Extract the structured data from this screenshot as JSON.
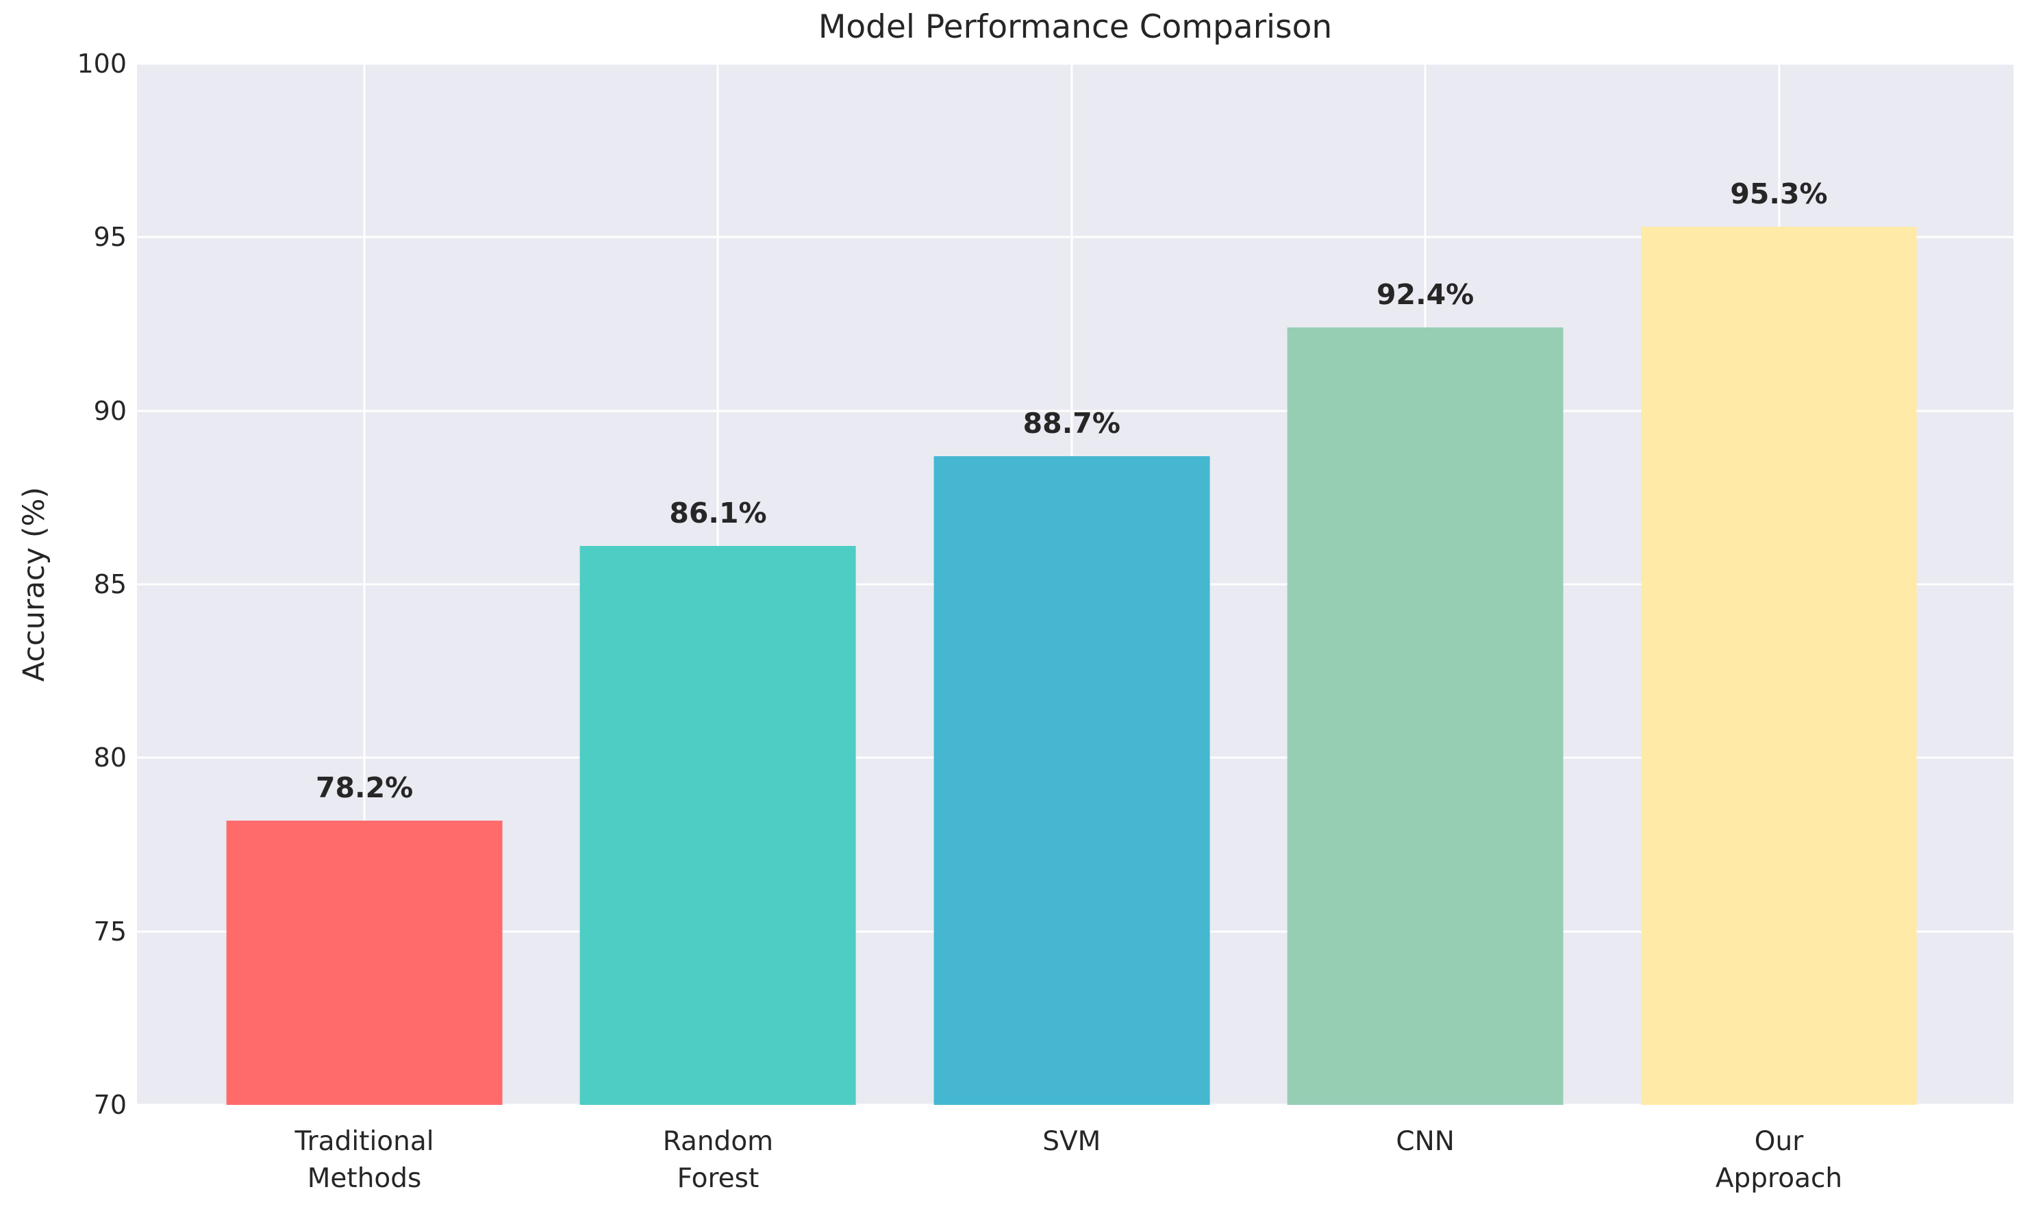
{
  "chart_data": {
    "type": "bar",
    "title": "Model Performance Comparison",
    "xlabel": "",
    "ylabel": "Accuracy (%)",
    "categories": [
      "Traditional\nMethods",
      "Random\nForest",
      "SVM",
      "CNN",
      "Our\nApproach"
    ],
    "values": [
      78.2,
      86.1,
      88.7,
      92.4,
      95.3
    ],
    "value_labels": [
      "78.2%",
      "86.1%",
      "88.7%",
      "92.4%",
      "95.3%"
    ],
    "colors": [
      "#FF6B6B",
      "#4ECDC4",
      "#45B7D1",
      "#96CEB4",
      "#FFEAA7"
    ],
    "ylim": [
      70,
      100
    ],
    "yticks": [
      70,
      75,
      80,
      85,
      90,
      95,
      100
    ],
    "grid": true,
    "legend": "none",
    "plot_background": "#EAEAF2",
    "grid_color": "#FFFFFF",
    "text_color": "#262626"
  }
}
